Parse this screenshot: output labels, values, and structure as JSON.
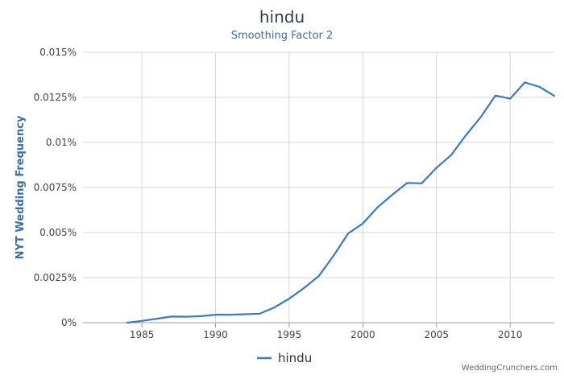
{
  "chart_data": {
    "type": "line",
    "title": "hindu",
    "subtitle": "Smoothing Factor 2",
    "xlabel": "",
    "ylabel": "NYT Wedding Frequency",
    "xlim": [
      1981,
      2013
    ],
    "ylim": [
      0,
      0.015
    ],
    "x_ticks": [
      1985,
      1990,
      1995,
      2000,
      2005,
      2010
    ],
    "y_ticks": [
      {
        "value": 0,
        "label": "0%"
      },
      {
        "value": 0.0025,
        "label": "0.0025%"
      },
      {
        "value": 0.005,
        "label": "0.005%"
      },
      {
        "value": 0.0075,
        "label": "0.0075%"
      },
      {
        "value": 0.01,
        "label": "0.01%"
      },
      {
        "value": 0.0125,
        "label": "0.0125%"
      },
      {
        "value": 0.015,
        "label": "0.015%"
      }
    ],
    "grid": true,
    "legend_position": "bottom-center",
    "series": [
      {
        "name": "hindu",
        "color": "#3a7ac4",
        "x": [
          1984,
          1985,
          1986,
          1987,
          1988,
          1989,
          1990,
          1991,
          1992,
          1993,
          1994,
          1995,
          1996,
          1997,
          1998,
          1999,
          2000,
          2001,
          2002,
          2003,
          2004,
          2005,
          2006,
          2007,
          2008,
          2009,
          2010,
          2011,
          2012,
          2013
        ],
        "values": [
          0.0,
          0.0001,
          0.00022,
          0.00034,
          0.00033,
          0.00036,
          0.00044,
          0.00044,
          0.00047,
          0.0005,
          0.00085,
          0.00133,
          0.00192,
          0.00258,
          0.0037,
          0.00495,
          0.0055,
          0.0064,
          0.0071,
          0.00775,
          0.00773,
          0.0086,
          0.0093,
          0.0104,
          0.0114,
          0.0126,
          0.01243,
          0.01333,
          0.01308,
          0.01258
        ]
      }
    ]
  },
  "watermark": "WeddingCrunchers.com"
}
